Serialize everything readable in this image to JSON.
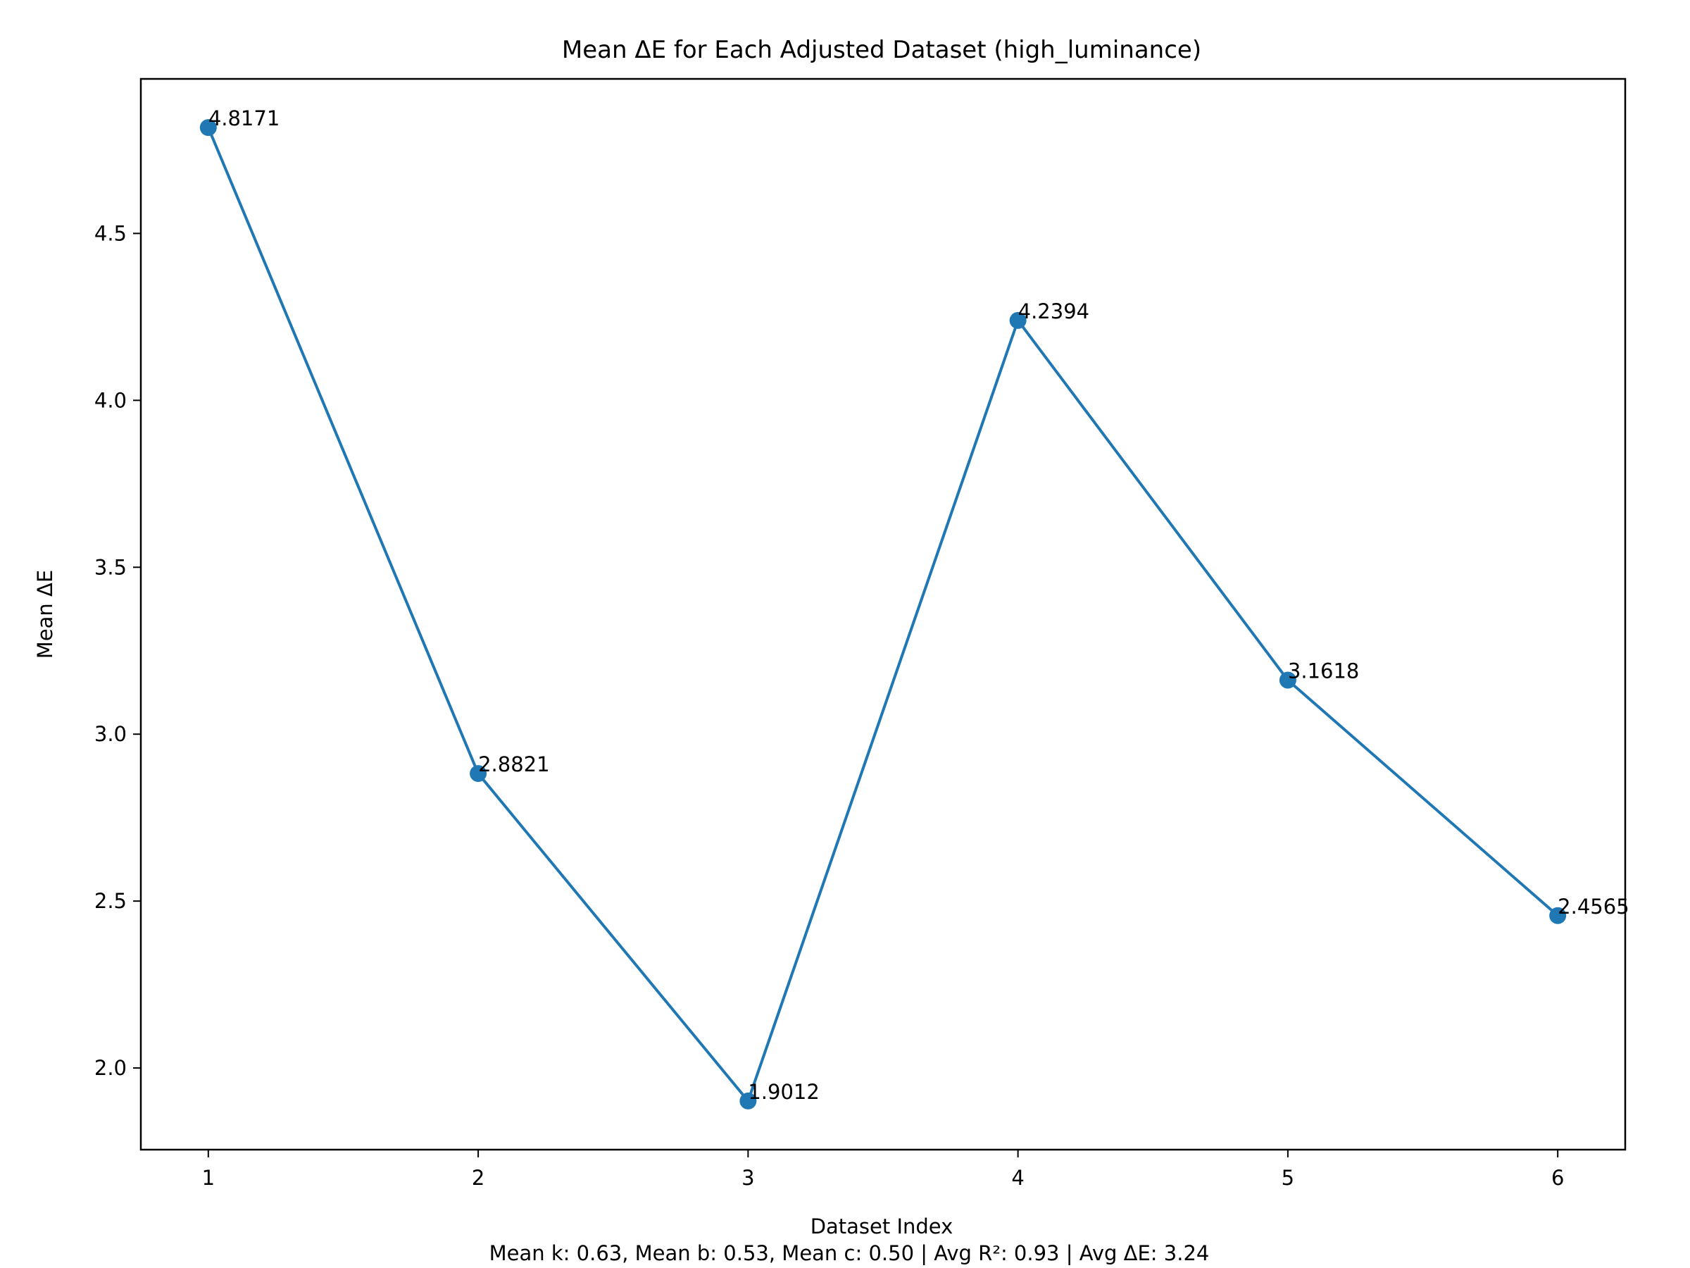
{
  "chart_data": {
    "type": "line",
    "title": "Mean ΔE for Each Adjusted Dataset (high_luminance)",
    "xlabel": "Dataset Index",
    "ylabel": "Mean ΔE",
    "x": [
      1,
      2,
      3,
      4,
      5,
      6
    ],
    "values": [
      4.8171,
      2.8821,
      1.9012,
      4.2394,
      3.1618,
      2.4565
    ],
    "data_labels": [
      "4.8171",
      "2.8821",
      "1.9012",
      "4.2394",
      "3.1618",
      "2.4565"
    ],
    "xlim": [
      0.75,
      6.25
    ],
    "ylim": [
      1.7554,
      4.9629
    ],
    "xticks": [
      1,
      2,
      3,
      4,
      5,
      6
    ],
    "xtick_labels": [
      "1",
      "2",
      "3",
      "4",
      "5",
      "6"
    ],
    "yticks": [
      2.0,
      2.5,
      3.0,
      3.5,
      4.0,
      4.5
    ],
    "ytick_labels": [
      "2.0",
      "2.5",
      "3.0",
      "3.5",
      "4.0",
      "4.5"
    ],
    "grid": false,
    "line_color": "#1f77b4",
    "marker": "circle",
    "footer": "Mean k: 0.63, Mean b: 0.53, Mean c: 0.50 | Avg R²: 0.93 | Avg ΔE: 3.24"
  }
}
